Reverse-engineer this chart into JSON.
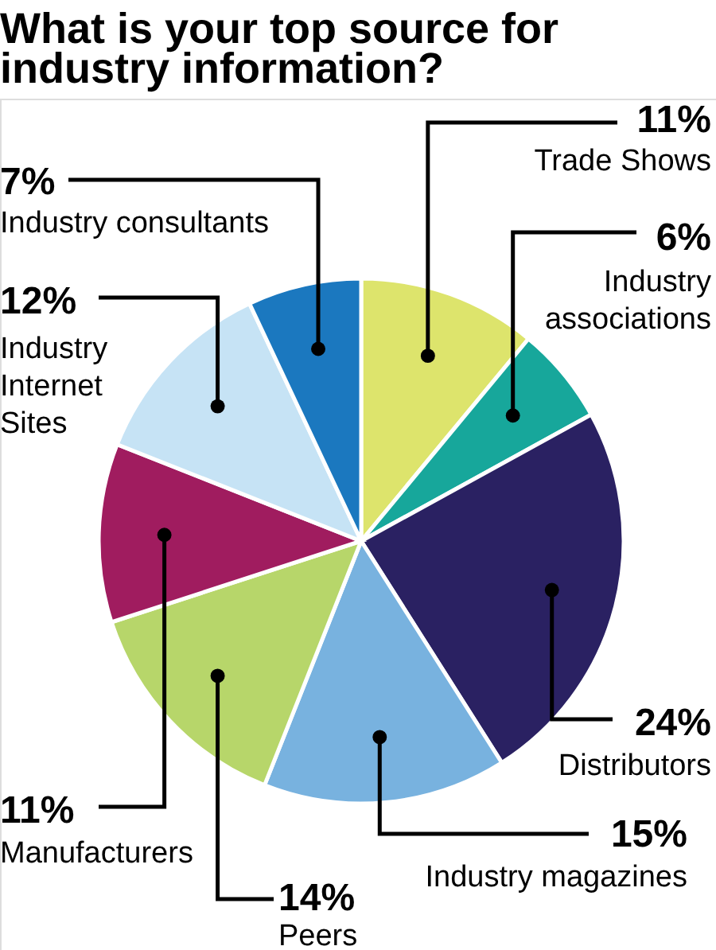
{
  "chart_data": {
    "type": "pie",
    "title": "What is your top source for industry information?",
    "categories": [
      "Trade Shows",
      "Industry associations",
      "Distributors",
      "Industry magazines",
      "Peers",
      "Manufacturers",
      "Industry Internet Sites",
      "Industry consultants"
    ],
    "values": [
      11,
      6,
      24,
      15,
      14,
      11,
      12,
      7
    ],
    "value_labels": [
      "11%",
      "6%",
      "24%",
      "15%",
      "14%",
      "11%",
      "12%",
      "7%"
    ],
    "colors": [
      "#dde46c",
      "#17a79b",
      "#2a2162",
      "#78b2df",
      "#b7d66a",
      "#a01c5f",
      "#c6e3f5",
      "#1b78bf"
    ]
  }
}
